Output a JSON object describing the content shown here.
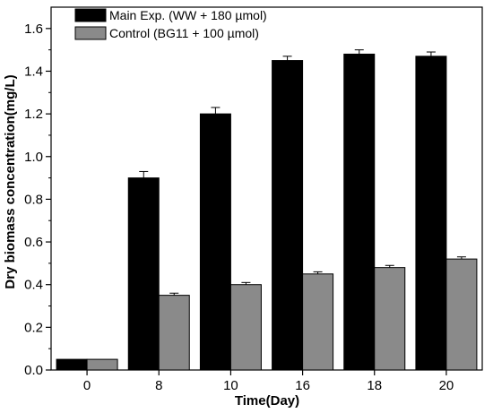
{
  "chart_data": {
    "type": "bar",
    "title": "",
    "xlabel": "Time(Day)",
    "ylabel": "Dry biomass concentration(mg/L)",
    "categories": [
      "0",
      "8",
      "10",
      "16",
      "18",
      "20"
    ],
    "ylim": [
      0,
      1.7
    ],
    "yticks": [
      "0.0",
      "0.2",
      "0.4",
      "0.6",
      "0.8",
      "1.0",
      "1.2",
      "1.4",
      "1.6"
    ],
    "legend_position": "top-left",
    "grid": false,
    "series": [
      {
        "name": "Main Exp. (WW + 180 µmol)",
        "color": "#000000",
        "values": [
          0.05,
          0.9,
          1.2,
          1.45,
          1.48,
          1.47
        ],
        "errors": [
          0.0,
          0.03,
          0.03,
          0.02,
          0.02,
          0.02
        ]
      },
      {
        "name": "Control (BG11 + 100 µmol)",
        "color": "#8a8a8a",
        "values": [
          0.05,
          0.35,
          0.4,
          0.45,
          0.48,
          0.52
        ],
        "errors": [
          0.0,
          0.01,
          0.01,
          0.01,
          0.01,
          0.01
        ]
      }
    ]
  }
}
